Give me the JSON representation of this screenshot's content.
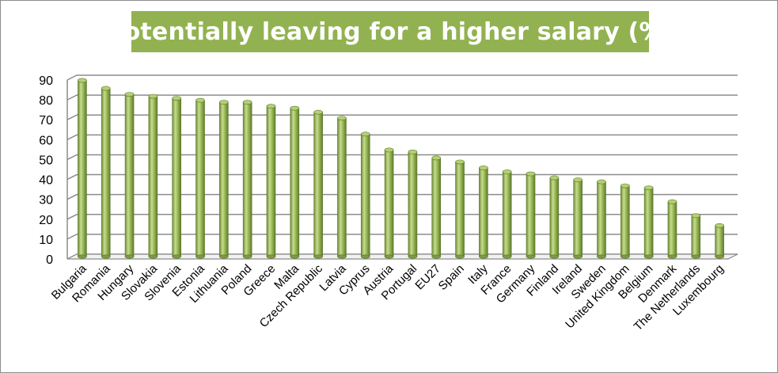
{
  "title": "Potentially leaving for a higher salary (%)",
  "colors": {
    "title_background": "#92b251",
    "bar_fill": "#9bbb59",
    "bar_highlight": "#c7dc8e",
    "bar_shadow": "#6f8a37",
    "gridline": "#8c8c8c"
  },
  "chart_data": {
    "type": "bar",
    "style": "3d-cylinder",
    "title": "Potentially leaving for a higher salary (%)",
    "xlabel": "",
    "ylabel": "",
    "ylim": [
      0,
      90
    ],
    "yticks": [
      0,
      10,
      20,
      30,
      40,
      50,
      60,
      70,
      80,
      90
    ],
    "grid": true,
    "legend": "none",
    "categories": [
      "Bulgaria",
      "Romania",
      "Hungary",
      "Slovakia",
      "Slovenia",
      "Estonia",
      "Lithuania",
      "Poland",
      "Greece",
      "Malta",
      "Czech Republic",
      "Latvia",
      "Cyprus",
      "Austria",
      "Portugal",
      "EU27",
      "Spain",
      "Italy",
      "France",
      "Germany",
      "Finland",
      "Ireland",
      "Sweden",
      "United Kingdom",
      "Belgium",
      "Denmark",
      "The Netherlands",
      "Luxembourg"
    ],
    "values": [
      89,
      85,
      82,
      81,
      80,
      79,
      78,
      78,
      76,
      75,
      73,
      70,
      62,
      54,
      53,
      50,
      48,
      45,
      43,
      42,
      40,
      39,
      38,
      36,
      35,
      28,
      21,
      16
    ]
  }
}
